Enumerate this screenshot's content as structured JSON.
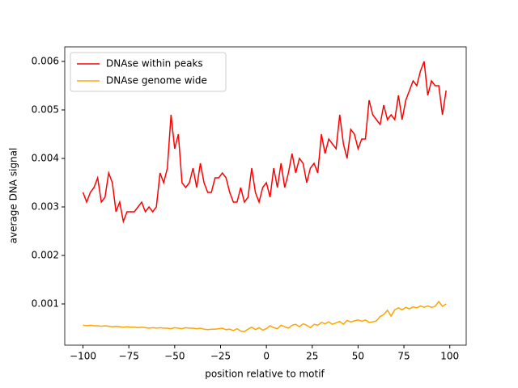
{
  "chart_data": {
    "type": "line",
    "xlabel": "position relative to motif",
    "ylabel": "average DNA signal",
    "x": [
      -100,
      -98,
      -96,
      -94,
      -92,
      -90,
      -88,
      -86,
      -84,
      -82,
      -80,
      -78,
      -76,
      -74,
      -72,
      -70,
      -68,
      -66,
      -64,
      -62,
      -60,
      -58,
      -56,
      -54,
      -52,
      -50,
      -48,
      -46,
      -44,
      -42,
      -40,
      -38,
      -36,
      -34,
      -32,
      -30,
      -28,
      -26,
      -24,
      -22,
      -20,
      -18,
      -16,
      -14,
      -12,
      -10,
      -8,
      -6,
      -4,
      -2,
      0,
      2,
      4,
      6,
      8,
      10,
      12,
      14,
      16,
      18,
      20,
      22,
      24,
      26,
      28,
      30,
      32,
      34,
      36,
      38,
      40,
      42,
      44,
      46,
      48,
      50,
      52,
      54,
      56,
      58,
      60,
      62,
      64,
      66,
      68,
      70,
      72,
      74,
      76,
      78,
      80,
      82,
      84,
      86,
      88,
      90,
      92,
      94,
      96,
      98
    ],
    "series": [
      {
        "name": "DNAse within peaks",
        "color": "#ff0000",
        "values": [
          0.0033,
          0.0031,
          0.0033,
          0.0034,
          0.0036,
          0.0031,
          0.0032,
          0.0037,
          0.0035,
          0.0029,
          0.0031,
          0.0027,
          0.0029,
          0.0029,
          0.0029,
          0.003,
          0.0031,
          0.0029,
          0.003,
          0.0029,
          0.003,
          0.0037,
          0.0035,
          0.0038,
          0.0049,
          0.0042,
          0.0045,
          0.0035,
          0.0034,
          0.0035,
          0.0038,
          0.0034,
          0.0039,
          0.0035,
          0.0033,
          0.0033,
          0.0036,
          0.0036,
          0.0037,
          0.0036,
          0.0033,
          0.0031,
          0.0031,
          0.0034,
          0.0031,
          0.0032,
          0.0038,
          0.0033,
          0.0031,
          0.0034,
          0.0035,
          0.0032,
          0.0038,
          0.0034,
          0.0039,
          0.0034,
          0.0037,
          0.0041,
          0.0037,
          0.004,
          0.0039,
          0.0035,
          0.0038,
          0.0039,
          0.0037,
          0.0045,
          0.0041,
          0.0044,
          0.0043,
          0.0042,
          0.0049,
          0.0043,
          0.004,
          0.0046,
          0.0045,
          0.0042,
          0.0044,
          0.0044,
          0.0052,
          0.0049,
          0.0048,
          0.0047,
          0.0051,
          0.0048,
          0.0049,
          0.0048,
          0.0053,
          0.0048,
          0.0052,
          0.0054,
          0.0056,
          0.0055,
          0.0058,
          0.006,
          0.0053,
          0.0056,
          0.0055,
          0.0055,
          0.0049,
          0.0054
        ]
      },
      {
        "name": "DNAse genome wide",
        "color": "#ffa500",
        "values": [
          0.00056,
          0.00055,
          0.00056,
          0.00055,
          0.00055,
          0.00054,
          0.00055,
          0.00054,
          0.00053,
          0.00054,
          0.00053,
          0.00052,
          0.00053,
          0.00052,
          0.00052,
          0.00051,
          0.00052,
          0.00051,
          0.0005,
          0.00051,
          0.0005,
          0.00051,
          0.0005,
          0.0005,
          0.00049,
          0.00051,
          0.0005,
          0.00049,
          0.00051,
          0.0005,
          0.0005,
          0.00049,
          0.0005,
          0.00048,
          0.00047,
          0.00048,
          0.00048,
          0.00049,
          0.0005,
          0.00047,
          0.00048,
          0.00045,
          0.00049,
          0.00044,
          0.00043,
          0.00048,
          0.00052,
          0.00047,
          0.00051,
          0.00046,
          0.00049,
          0.00055,
          0.00051,
          0.00049,
          0.00056,
          0.00053,
          0.0005,
          0.00056,
          0.00058,
          0.00053,
          0.00059,
          0.00056,
          0.00051,
          0.00058,
          0.00056,
          0.00062,
          0.00059,
          0.00063,
          0.00058,
          0.00061,
          0.00064,
          0.00058,
          0.00066,
          0.00063,
          0.00065,
          0.00067,
          0.00064,
          0.00067,
          0.00062,
          0.00063,
          0.00065,
          0.00074,
          0.00078,
          0.00087,
          0.00075,
          0.00088,
          0.00092,
          0.00088,
          0.00093,
          0.0009,
          0.00094,
          0.00092,
          0.00096,
          0.00093,
          0.00096,
          0.00093,
          0.00095,
          0.00105,
          0.00095,
          0.001
        ]
      }
    ],
    "xlim": [
      -109.95,
      108.95
    ],
    "ylim": [
      0.00015,
      0.0063
    ],
    "xticks": [
      {
        "value": -100,
        "label": "−100"
      },
      {
        "value": -75,
        "label": "−75"
      },
      {
        "value": -50,
        "label": "−50"
      },
      {
        "value": -25,
        "label": "−25"
      },
      0,
      25,
      50,
      75,
      100
    ],
    "yticks": [
      0.001,
      0.002,
      0.003,
      0.004,
      0.005,
      0.006
    ],
    "legend": "upper left"
  }
}
